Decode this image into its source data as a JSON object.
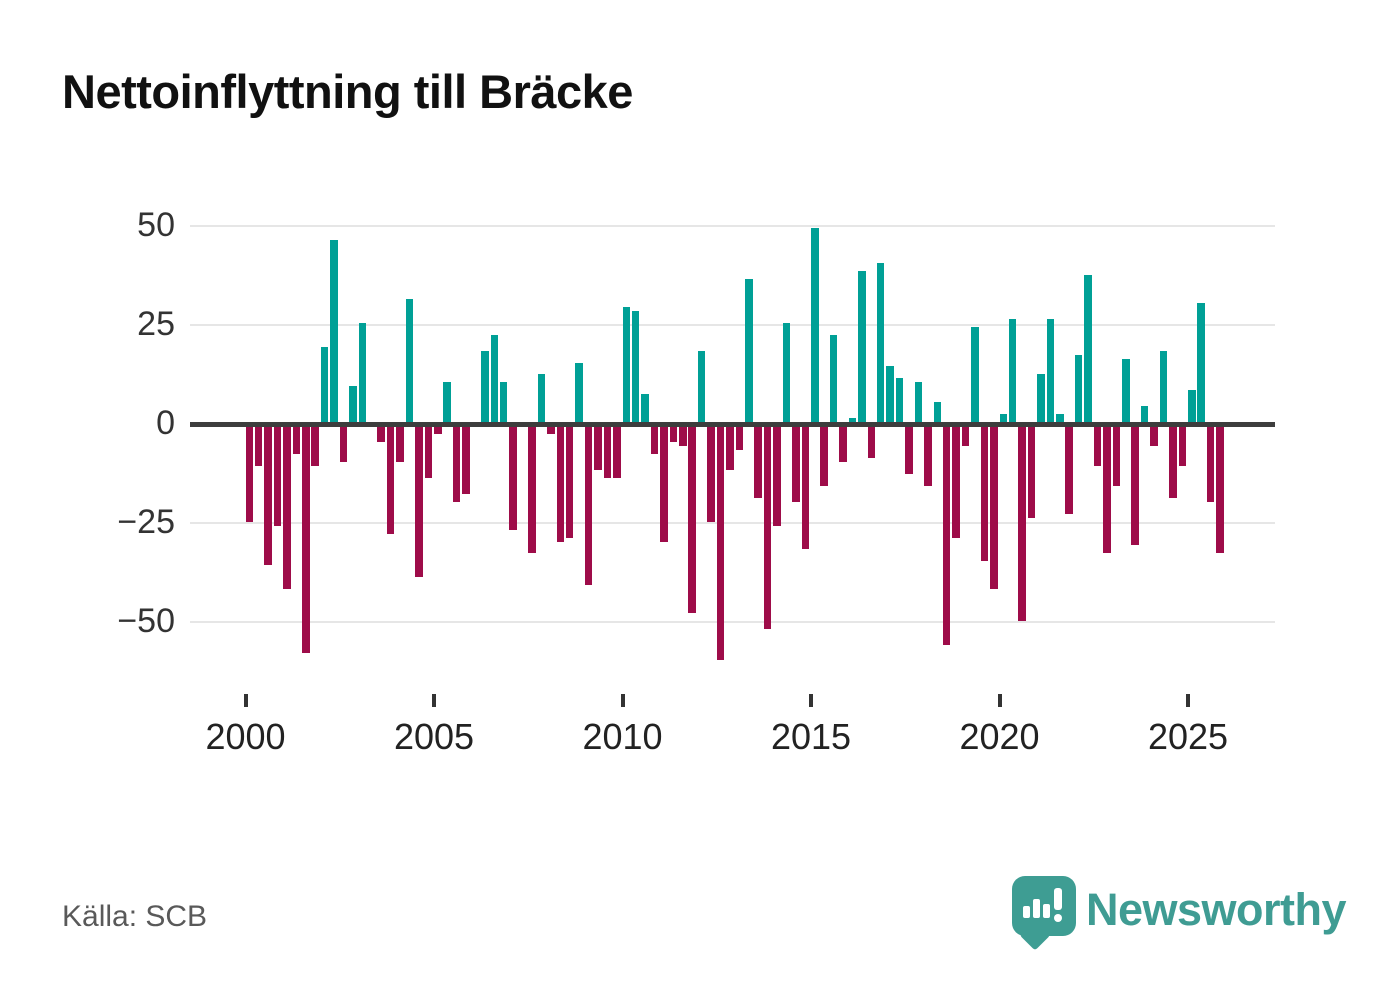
{
  "header": {
    "title": "Nettoinflyttning till Bräcke"
  },
  "footer": {
    "source_label": "Källa: SCB",
    "brand": "Newsworthy"
  },
  "chart_data": {
    "type": "bar",
    "title": "Nettoinflyttning till Bräcke",
    "ylabel": "",
    "xlabel": "",
    "frequency": "quarterly",
    "start_period": "2000 Q1",
    "end_period": "2025 Q4",
    "ylim": [
      -65,
      55
    ],
    "grid": "horizontal",
    "y_tick_labels": [
      "50",
      "25",
      "0",
      "−25",
      "−50"
    ],
    "x_tick_labels": [
      "2000",
      "2005",
      "2010",
      "2015",
      "2020",
      "2025"
    ],
    "positive_color": "#00a096",
    "negative_color": "#9e0c49",
    "values": [
      -24,
      -10,
      -35,
      -25,
      -41,
      -7,
      -57,
      -10,
      19,
      46,
      -9,
      9,
      25,
      0,
      -4,
      -27,
      -9,
      31,
      -38,
      -13,
      -2,
      10,
      -19,
      -17,
      0,
      18,
      22,
      10,
      -26,
      0,
      -32,
      12,
      -2,
      -29,
      -28,
      15,
      -40,
      -11,
      -13,
      -13,
      29,
      28,
      7,
      -7,
      -29,
      -4,
      -5,
      -47,
      18,
      -24,
      -59,
      -11,
      -6,
      36,
      -18,
      -51,
      -25,
      25,
      -19,
      -31,
      49,
      -15,
      22,
      -9,
      1,
      38,
      -8,
      40,
      14,
      11,
      -12,
      10,
      -15,
      5,
      -55,
      -28,
      -5,
      24,
      -34,
      -41,
      2,
      26,
      -49,
      -23,
      12,
      26,
      2,
      -22,
      17,
      37,
      -10,
      -32,
      -15,
      16,
      -30,
      4,
      -5,
      18,
      -18,
      -10,
      8,
      30,
      -19,
      -32
    ]
  }
}
